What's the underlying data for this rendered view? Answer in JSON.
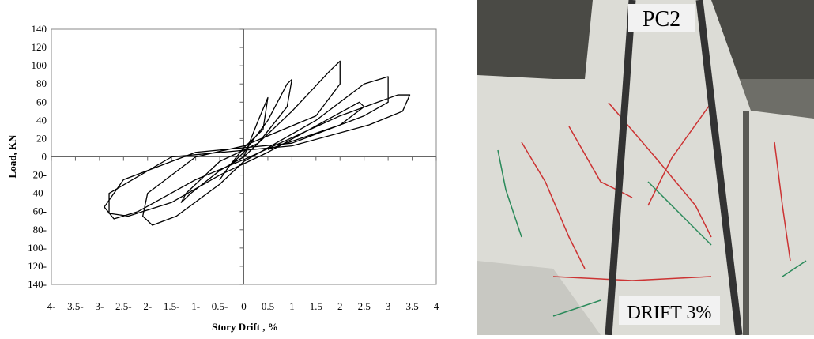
{
  "chart_data": {
    "type": "line",
    "xlabel": "Story Drift , %",
    "ylabel": "Load, KN",
    "xlim": [
      -4,
      4
    ],
    "ylim": [
      -140,
      140
    ],
    "xticks": [
      {
        "value": -4,
        "label": "4-"
      },
      {
        "value": -3.5,
        "label": "3.5-"
      },
      {
        "value": -3,
        "label": "3-"
      },
      {
        "value": -2.5,
        "label": "2.5-"
      },
      {
        "value": -2,
        "label": "2-"
      },
      {
        "value": -1.5,
        "label": "1.5-"
      },
      {
        "value": -1,
        "label": "1-"
      },
      {
        "value": -0.5,
        "label": "0.5-"
      },
      0,
      0.5,
      1,
      1.5,
      2,
      2.5,
      3,
      3.5,
      4
    ],
    "yticks": [
      {
        "value": -140,
        "label": "140-"
      },
      {
        "value": -120,
        "label": "120-"
      },
      {
        "value": -100,
        "label": "100-"
      },
      {
        "value": -80,
        "label": "80-"
      },
      {
        "value": -60,
        "label": "60-"
      },
      {
        "value": -40,
        "label": "40-"
      },
      {
        "value": -20,
        "label": "20-"
      },
      0,
      20,
      40,
      60,
      80,
      100,
      120,
      140
    ],
    "series": [
      {
        "color": "#000000",
        "x": [
          0,
          0.3,
          0.5,
          0.4,
          0,
          -0.3,
          -0.5,
          -0.3,
          0,
          0.5,
          0.9,
          1.0,
          0.9,
          0.3,
          -0.5,
          -1.2,
          -1.3,
          -1.1,
          -0.5,
          0,
          1,
          1.8,
          2.0,
          2.0,
          1.5,
          0,
          -1,
          -2,
          -2.1,
          -1.9,
          -1.4,
          -0.5,
          0,
          1.5,
          2.5,
          3.0,
          3.0,
          2.5,
          1,
          -1,
          -2.5,
          -2.9,
          -2.7,
          -2.2,
          -1,
          0,
          2,
          3.2,
          3.45,
          3.3,
          2.6,
          1,
          -1.5,
          -2.8,
          -2.8,
          -2.4,
          -1.5,
          -0.5,
          0.5,
          2.4,
          2.5,
          2,
          0.5
        ],
        "values": [
          0,
          40,
          65,
          30,
          10,
          -10,
          -25,
          -10,
          5,
          40,
          80,
          85,
          55,
          15,
          -5,
          -40,
          -50,
          -40,
          -15,
          0,
          50,
          95,
          105,
          80,
          45,
          12,
          0,
          -40,
          -65,
          -75,
          -65,
          -30,
          -5,
          40,
          80,
          88,
          60,
          45,
          15,
          5,
          -25,
          -55,
          -68,
          -60,
          -25,
          -3,
          45,
          68,
          68,
          50,
          35,
          12,
          0,
          -40,
          -62,
          -65,
          -50,
          -20,
          5,
          60,
          55,
          35,
          8
        ]
      }
    ]
  },
  "photo": {
    "labels": [
      "PC2",
      "DRIFT 3%"
    ]
  }
}
